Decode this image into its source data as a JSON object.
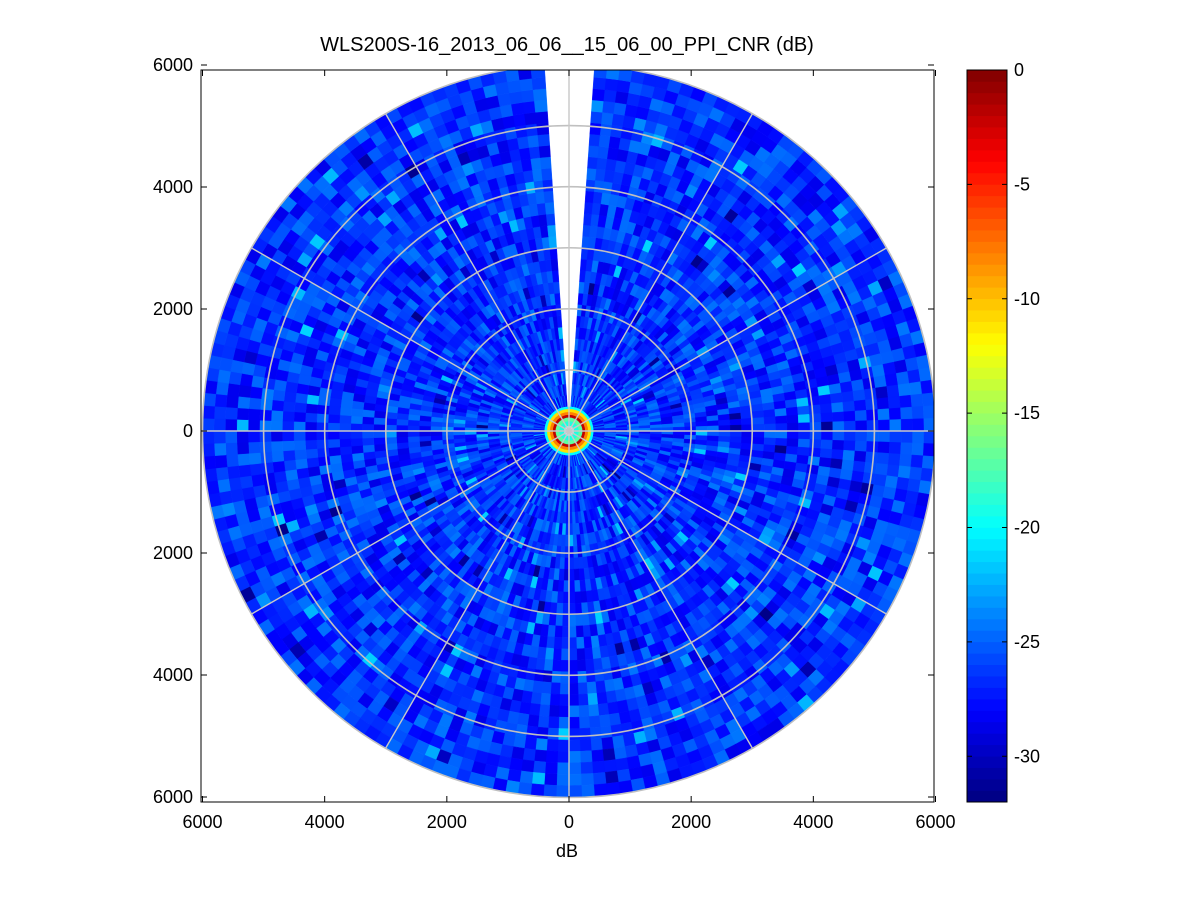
{
  "chart_data": {
    "type": "heatmap",
    "subtype": "polar-ppi",
    "title": "WLS200S-16_2013_06_06__15_06_00_PPI_CNR (dB)",
    "xlabel": "dB",
    "ylabel": "",
    "xlim": [
      -6000,
      6000
    ],
    "ylim": [
      -6000,
      6000
    ],
    "x_ticks": [
      -6000,
      -4000,
      -2000,
      0,
      2000,
      4000,
      6000
    ],
    "y_ticks": [
      -6000,
      -4000,
      -2000,
      0,
      2000,
      4000,
      6000
    ],
    "x_tick_labels": [
      "6000",
      "4000",
      "2000",
      "0",
      "2000",
      "4000",
      "6000"
    ],
    "y_tick_labels": [
      "6000",
      "4000",
      "2000",
      "0",
      "2000",
      "4000",
      "6000"
    ],
    "max_range": 6000,
    "range_rings": [
      1000,
      2000,
      3000,
      4000,
      5000,
      6000
    ],
    "spokes_deg": [
      0,
      30,
      60,
      90,
      120,
      150,
      180,
      210,
      240,
      270,
      300,
      330
    ],
    "missing_sector_deg": [
      -4,
      4
    ],
    "near_field_radius": 400,
    "grid": true,
    "colormap": "jet",
    "colorbar": {
      "min": -32,
      "max": 0,
      "ticks": [
        0,
        -5,
        -10,
        -15,
        -20,
        -25,
        -30
      ],
      "tick_labels": [
        "0",
        "-5",
        "-10",
        "-15",
        "-20",
        "-25",
        "-30"
      ]
    },
    "field": {
      "background_db": -26.5,
      "typical_range_db": [
        -30,
        -23
      ],
      "near_field_db": [
        -20,
        -2
      ]
    }
  }
}
